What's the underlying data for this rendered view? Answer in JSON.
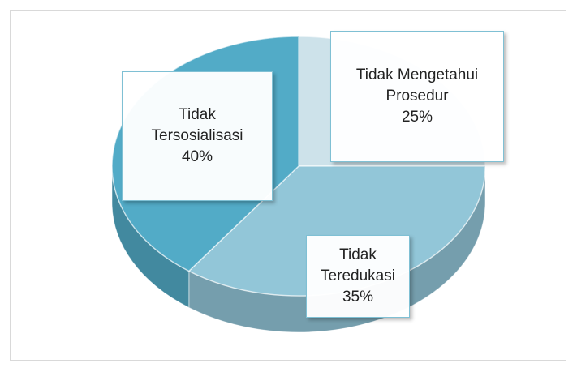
{
  "chart_data": {
    "type": "pie",
    "categories": [
      "Tidak Mengetahui Prosedur",
      "Tidak Teredukasi",
      "Tidak Tersosialisasi"
    ],
    "values": [
      25,
      35,
      40
    ],
    "value_labels": [
      "25%",
      "35%",
      "40%"
    ],
    "colors": [
      "#cde2ea",
      "#92c6d8",
      "#52abc7"
    ]
  }
}
